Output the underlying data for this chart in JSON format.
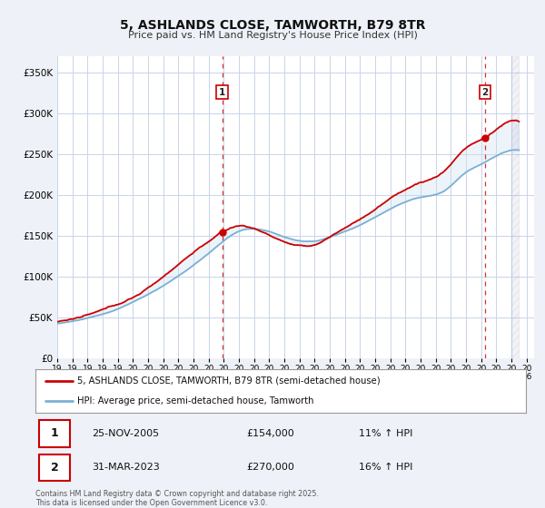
{
  "title": "5, ASHLANDS CLOSE, TAMWORTH, B79 8TR",
  "subtitle": "Price paid vs. HM Land Registry's House Price Index (HPI)",
  "ylim": [
    0,
    370000
  ],
  "xlim_start": 1995.0,
  "xlim_end": 2026.5,
  "yticks": [
    0,
    50000,
    100000,
    150000,
    200000,
    250000,
    300000,
    350000
  ],
  "ytick_labels": [
    "£0",
    "£50K",
    "£100K",
    "£150K",
    "£200K",
    "£250K",
    "£300K",
    "£350K"
  ],
  "property_color": "#cc0000",
  "hpi_color": "#7ab0d4",
  "fill_color": "#cce0f0",
  "marker1_x": 2005.9,
  "marker1_y": 154000,
  "marker1_label": "1",
  "marker1_date": "25-NOV-2005",
  "marker1_price": "£154,000",
  "marker1_hpi": "11% ↑ HPI",
  "marker2_x": 2023.25,
  "marker2_y": 270000,
  "marker2_label": "2",
  "marker2_date": "31-MAR-2023",
  "marker2_price": "£270,000",
  "marker2_hpi": "16% ↑ HPI",
  "legend_line1": "5, ASHLANDS CLOSE, TAMWORTH, B79 8TR (semi-detached house)",
  "legend_line2": "HPI: Average price, semi-detached house, Tamworth",
  "footer": "Contains HM Land Registry data © Crown copyright and database right 2025.\nThis data is licensed under the Open Government Licence v3.0.",
  "bg_color": "#eef2f8",
  "plot_bg_color": "#ffffff",
  "grid_color": "#c8d4e8",
  "shade_color": "#dce8f5"
}
